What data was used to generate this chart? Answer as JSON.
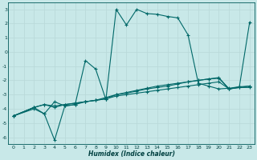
{
  "xlabel": "Humidex (Indice chaleur)",
  "bg_color": "#c8e8e8",
  "grid_color": "#b8d8d8",
  "line_color": "#006868",
  "xlim": [
    -0.5,
    23.5
  ],
  "ylim": [
    -6.5,
    3.5
  ],
  "xticks": [
    0,
    1,
    2,
    3,
    4,
    5,
    6,
    7,
    8,
    9,
    10,
    11,
    12,
    13,
    14,
    15,
    16,
    17,
    18,
    19,
    20,
    21,
    22,
    23
  ],
  "yticks": [
    -6,
    -5,
    -4,
    -3,
    -2,
    -1,
    0,
    1,
    2,
    3
  ],
  "series": [
    {
      "x": [
        0,
        2,
        3,
        4,
        5,
        6,
        7,
        8,
        9,
        10,
        11,
        12,
        13,
        14,
        15,
        16,
        17,
        18,
        19,
        20,
        21,
        22,
        23
      ],
      "y": [
        -4.5,
        -3.9,
        -3.7,
        -3.8,
        -3.7,
        -3.6,
        -3.5,
        -3.4,
        -3.3,
        -3.1,
        -3.0,
        -2.9,
        -2.8,
        -2.7,
        -2.6,
        -2.5,
        -2.4,
        -2.3,
        -2.2,
        -2.1,
        -2.6,
        -2.5,
        -2.5
      ]
    },
    {
      "x": [
        0,
        2,
        3,
        4,
        5,
        6,
        7,
        8,
        9,
        10,
        11,
        12,
        13,
        14,
        15,
        16,
        17,
        18,
        19,
        20,
        21,
        22,
        23
      ],
      "y": [
        -4.5,
        -3.9,
        -3.7,
        -3.9,
        -3.7,
        -3.6,
        -3.5,
        -3.4,
        -3.2,
        -3.0,
        -2.85,
        -2.7,
        -2.55,
        -2.4,
        -2.3,
        -2.2,
        -2.1,
        -2.0,
        -1.9,
        -1.8,
        -2.6,
        -2.45,
        -2.4
      ]
    },
    {
      "x": [
        0,
        2,
        3,
        4,
        5,
        6,
        7,
        8,
        9,
        10,
        11,
        12,
        13,
        14,
        15,
        16,
        17,
        18,
        19,
        20,
        21,
        22,
        23
      ],
      "y": [
        -4.5,
        -4.0,
        -4.35,
        -6.2,
        -3.8,
        -3.7,
        -0.6,
        -1.2,
        -3.35,
        3.0,
        1.9,
        3.0,
        2.7,
        2.65,
        2.5,
        2.4,
        1.2,
        -2.2,
        -2.4,
        -2.6,
        -2.55,
        -2.45,
        2.1
      ]
    },
    {
      "x": [
        0,
        2,
        3,
        4,
        5,
        6,
        7,
        8,
        9,
        10,
        11,
        12,
        13,
        14,
        15,
        16,
        17,
        18,
        19,
        20,
        21,
        22,
        23
      ],
      "y": [
        -4.5,
        -3.9,
        -4.35,
        -3.5,
        -3.8,
        -3.7,
        -3.5,
        -3.4,
        -3.3,
        -3.0,
        -2.9,
        -2.75,
        -2.6,
        -2.5,
        -2.4,
        -2.25,
        -2.1,
        -2.0,
        -1.9,
        -1.85,
        -2.6,
        -2.5,
        -2.4
      ]
    }
  ]
}
